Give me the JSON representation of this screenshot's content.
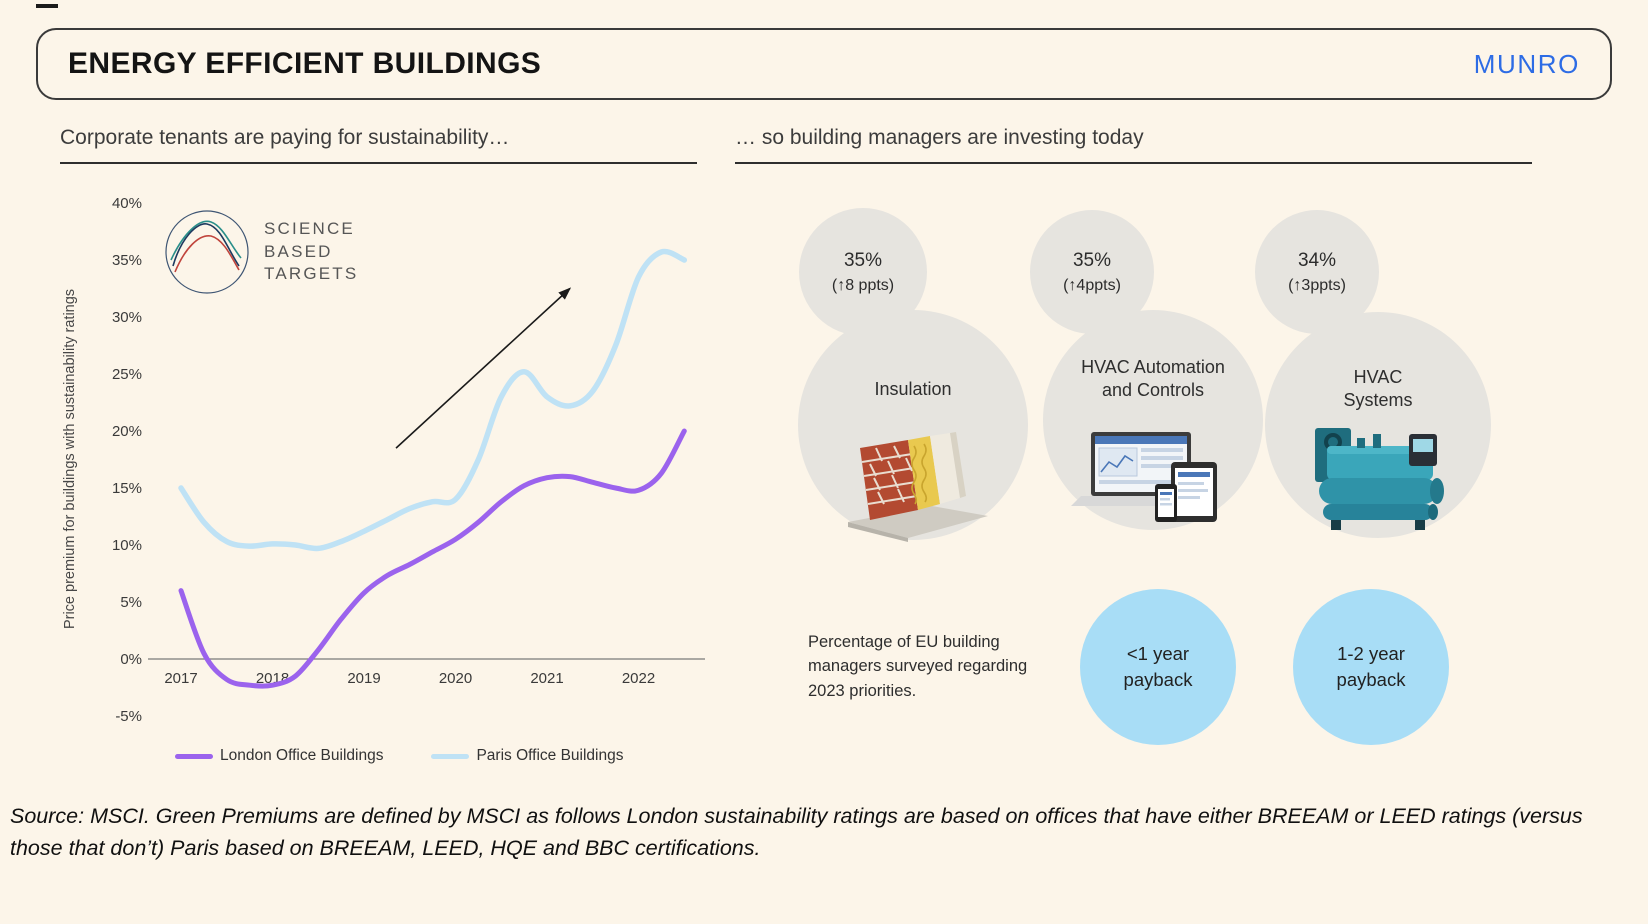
{
  "header": {
    "title": "ENERGY EFFICIENT BUILDINGS",
    "brand": "MUNRO",
    "brand_color": "#2d6ce5"
  },
  "left_section": {
    "heading": "Corporate tenants are paying for sustainability…",
    "sbt_logo": {
      "lines": [
        "SCIENCE",
        "BASED",
        "TARGETS"
      ]
    },
    "legend": [
      {
        "label": "London Office Buildings",
        "color": "#9b63ed"
      },
      {
        "label": "Paris Office Buildings",
        "color": "#bfe2f5"
      }
    ]
  },
  "chart_data": {
    "type": "line",
    "ylabel": "Price premium for buildings with sustainability ratings",
    "ylim": [
      -5,
      40
    ],
    "ytick_step": 5,
    "xticks": [
      2017,
      2018,
      2019,
      2020,
      2021,
      2022
    ],
    "x": [
      2017.0,
      2017.25,
      2017.5,
      2017.75,
      2018.0,
      2018.25,
      2018.5,
      2018.75,
      2019.0,
      2019.25,
      2019.5,
      2019.75,
      2020.0,
      2020.25,
      2020.5,
      2020.75,
      2021.0,
      2021.25,
      2021.5,
      2021.75,
      2022.0,
      2022.25,
      2022.5
    ],
    "series": [
      {
        "name": "London Office Buildings",
        "color": "#9b63ed",
        "stroke_width": 5,
        "values": [
          6,
          0.5,
          -1.8,
          -2.3,
          -2.3,
          -1.5,
          0.8,
          3.5,
          5.8,
          7.3,
          8.3,
          9.4,
          10.5,
          12,
          13.8,
          15.2,
          15.9,
          16,
          15.5,
          15,
          14.8,
          16.3,
          20
        ]
      },
      {
        "name": "Paris Office Buildings",
        "color": "#bfe2f5",
        "stroke_width": 5.5,
        "values": [
          15,
          12,
          10.3,
          9.9,
          10.1,
          10,
          9.7,
          10.3,
          11.2,
          12.2,
          13.2,
          13.8,
          14,
          17.5,
          23,
          25.2,
          23,
          22.2,
          23.5,
          27.5,
          33.5,
          35.7,
          35
        ]
      }
    ],
    "annotation_arrow": {
      "from": [
        2019.35,
        18.5
      ],
      "to": [
        2021.25,
        32.5
      ]
    },
    "axis_color": "#7a7a7a",
    "grid": false,
    "legend_position": "bottom"
  },
  "right_section": {
    "heading": "… so building managers are investing today",
    "circle_color": "#e6e4df",
    "payback_color": "#a8ddf6",
    "items": [
      {
        "stat": "35%",
        "delta": "(↑8 ppts)",
        "label_lines": [
          "Insulation",
          ""
        ]
      },
      {
        "stat": "35%",
        "delta": "(↑4ppts)",
        "label_lines": [
          "HVAC Automation",
          "and Controls"
        ]
      },
      {
        "stat": "34%",
        "delta": "(↑3ppts)",
        "label_lines": [
          "HVAC",
          "Systems"
        ]
      }
    ],
    "note": "Percentage of EU building managers surveyed regarding 2023 priorities.",
    "paybacks": [
      {
        "lines": [
          "<1 year",
          "payback"
        ]
      },
      {
        "lines": [
          "1-2 year",
          "payback"
        ]
      }
    ]
  },
  "footer": {
    "source": "Source: MSCI. Green Premiums are defined by MSCI as follows London sustainability ratings are based on offices that have either BREEAM or LEED ratings (versus those that don’t) Paris based on BREEAM, LEED, HQE and BBC certifications."
  }
}
